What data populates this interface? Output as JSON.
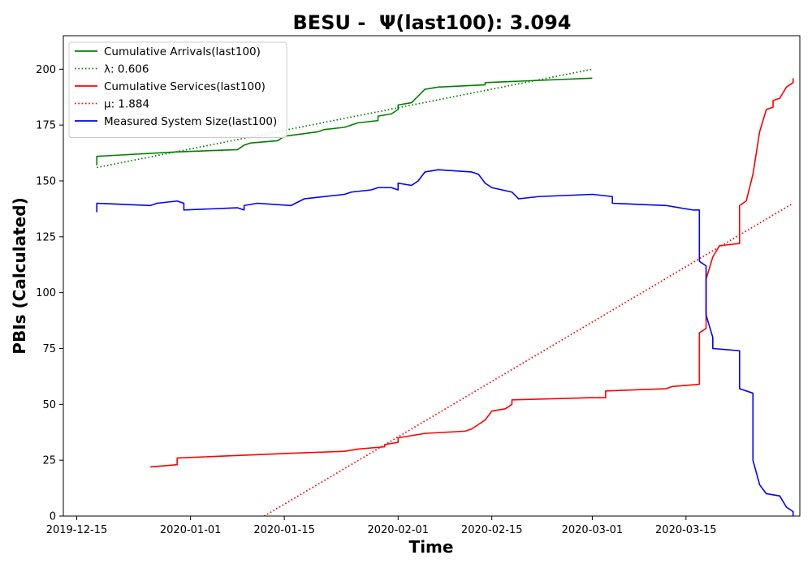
{
  "chart_data": {
    "type": "line",
    "title": "BESU -  Ψ(last100): 3.094",
    "xlabel": "Time",
    "ylabel": "PBIs (Calculated)",
    "xlim": [
      "2019-12-13",
      "2020-04-01"
    ],
    "ylim": [
      0,
      215
    ],
    "x_ticks": [
      "2019-12-15",
      "2020-01-01",
      "2020-01-15",
      "2020-02-01",
      "2020-02-15",
      "2020-03-01",
      "2020-03-15"
    ],
    "y_ticks": [
      0,
      25,
      50,
      75,
      100,
      125,
      150,
      175,
      200
    ],
    "grid": false,
    "legend_position": "top-left",
    "series": [
      {
        "name": "Cumulative Arrivals(last100)",
        "color": "#008000",
        "style": "solid",
        "points": [
          [
            "2019-12-18",
            157
          ],
          [
            "2019-12-18",
            161
          ],
          [
            "2019-12-30",
            163
          ],
          [
            "2020-01-08",
            164
          ],
          [
            "2020-01-09",
            166
          ],
          [
            "2020-01-10",
            167
          ],
          [
            "2020-01-14",
            168
          ],
          [
            "2020-01-15",
            170
          ],
          [
            "2020-01-20",
            172
          ],
          [
            "2020-01-21",
            173
          ],
          [
            "2020-01-24",
            174
          ],
          [
            "2020-01-26",
            176
          ],
          [
            "2020-01-29",
            177
          ],
          [
            "2020-01-29",
            179
          ],
          [
            "2020-01-31",
            180
          ],
          [
            "2020-02-01",
            182
          ],
          [
            "2020-02-01",
            184
          ],
          [
            "2020-02-03",
            185
          ],
          [
            "2020-02-04",
            188
          ],
          [
            "2020-02-05",
            191
          ],
          [
            "2020-02-07",
            192
          ],
          [
            "2020-02-14",
            193
          ],
          [
            "2020-02-14",
            194
          ],
          [
            "2020-03-01",
            196
          ]
        ]
      },
      {
        "name": "λ: 0.606",
        "color": "#008000",
        "style": "dotted",
        "points": [
          [
            "2019-12-18",
            156
          ],
          [
            "2020-03-01",
            200
          ]
        ]
      },
      {
        "name": "Cumulative Services(last100)",
        "color": "#ff0000",
        "style": "solid",
        "points": [
          [
            "2019-12-26",
            22
          ],
          [
            "2019-12-30",
            23
          ],
          [
            "2019-12-30",
            26
          ],
          [
            "2020-01-15",
            28
          ],
          [
            "2020-01-24",
            29
          ],
          [
            "2020-01-26",
            30
          ],
          [
            "2020-01-30",
            31
          ],
          [
            "2020-01-30",
            32
          ],
          [
            "2020-02-01",
            33
          ],
          [
            "2020-02-01",
            35
          ],
          [
            "2020-02-05",
            37
          ],
          [
            "2020-02-11",
            38
          ],
          [
            "2020-02-12",
            39
          ],
          [
            "2020-02-13",
            41
          ],
          [
            "2020-02-14",
            43
          ],
          [
            "2020-02-15",
            47
          ],
          [
            "2020-02-17",
            48
          ],
          [
            "2020-02-18",
            50
          ],
          [
            "2020-02-18",
            52
          ],
          [
            "2020-03-01",
            53
          ],
          [
            "2020-03-03",
            53
          ],
          [
            "2020-03-03",
            56
          ],
          [
            "2020-03-12",
            57
          ],
          [
            "2020-03-13",
            58
          ],
          [
            "2020-03-17",
            59
          ],
          [
            "2020-03-17",
            82
          ],
          [
            "2020-03-18",
            84
          ],
          [
            "2020-03-18",
            106
          ],
          [
            "2020-03-19",
            116
          ],
          [
            "2020-03-20",
            121
          ],
          [
            "2020-03-23",
            122
          ],
          [
            "2020-03-23",
            139
          ],
          [
            "2020-03-24",
            141
          ],
          [
            "2020-03-25",
            153
          ],
          [
            "2020-03-26",
            172
          ],
          [
            "2020-03-27",
            182
          ],
          [
            "2020-03-28",
            183
          ],
          [
            "2020-03-28",
            186
          ],
          [
            "2020-03-29",
            187
          ],
          [
            "2020-03-30",
            192
          ],
          [
            "2020-03-31",
            194
          ],
          [
            "2020-03-31",
            196
          ]
        ]
      },
      {
        "name": "μ: 1.884",
        "color": "#ff0000",
        "style": "dotted",
        "points": [
          [
            "2020-01-12",
            0
          ],
          [
            "2020-03-31",
            140
          ]
        ]
      },
      {
        "name": "Measured System Size(last100)",
        "color": "#0000ff",
        "style": "solid",
        "points": [
          [
            "2019-12-18",
            136
          ],
          [
            "2019-12-18",
            140
          ],
          [
            "2019-12-26",
            139
          ],
          [
            "2019-12-27",
            140
          ],
          [
            "2019-12-30",
            141
          ],
          [
            "2019-12-31",
            140
          ],
          [
            "2019-12-31",
            137
          ],
          [
            "2020-01-08",
            138
          ],
          [
            "2020-01-09",
            137
          ],
          [
            "2020-01-09",
            139
          ],
          [
            "2020-01-11",
            140
          ],
          [
            "2020-01-16",
            139
          ],
          [
            "2020-01-18",
            142
          ],
          [
            "2020-01-24",
            144
          ],
          [
            "2020-01-25",
            145
          ],
          [
            "2020-01-28",
            146
          ],
          [
            "2020-01-29",
            147
          ],
          [
            "2020-01-31",
            147
          ],
          [
            "2020-02-01",
            146
          ],
          [
            "2020-02-01",
            149
          ],
          [
            "2020-02-03",
            148
          ],
          [
            "2020-02-04",
            150
          ],
          [
            "2020-02-05",
            154
          ],
          [
            "2020-02-07",
            155
          ],
          [
            "2020-02-12",
            154
          ],
          [
            "2020-02-13",
            153
          ],
          [
            "2020-02-14",
            149
          ],
          [
            "2020-02-15",
            147
          ],
          [
            "2020-02-18",
            145
          ],
          [
            "2020-02-19",
            142
          ],
          [
            "2020-02-22",
            143
          ],
          [
            "2020-03-01",
            144
          ],
          [
            "2020-03-04",
            143
          ],
          [
            "2020-03-04",
            140
          ],
          [
            "2020-03-12",
            139
          ],
          [
            "2020-03-16",
            137
          ],
          [
            "2020-03-17",
            137
          ],
          [
            "2020-03-17",
            114
          ],
          [
            "2020-03-18",
            112
          ],
          [
            "2020-03-18",
            90
          ],
          [
            "2020-03-19",
            80
          ],
          [
            "2020-03-19",
            75
          ],
          [
            "2020-03-23",
            74
          ],
          [
            "2020-03-23",
            57
          ],
          [
            "2020-03-25",
            55
          ],
          [
            "2020-03-25",
            25
          ],
          [
            "2020-03-26",
            14
          ],
          [
            "2020-03-27",
            10
          ],
          [
            "2020-03-29",
            9
          ],
          [
            "2020-03-30",
            4
          ],
          [
            "2020-03-31",
            2
          ],
          [
            "2020-03-31",
            0
          ]
        ]
      }
    ]
  }
}
